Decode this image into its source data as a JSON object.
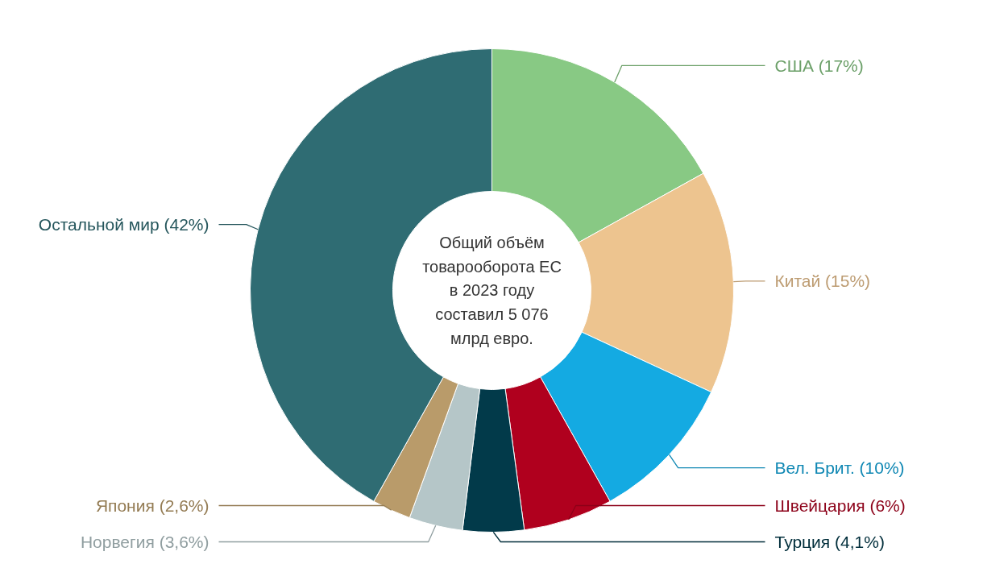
{
  "chart_data": {
    "type": "donut",
    "categories": [
      "США",
      "Китай",
      "Вел. Брит.",
      "Швейцария",
      "Турция",
      "Норвегия",
      "Япония",
      "Остальной мир"
    ],
    "values": [
      17,
      15,
      10,
      6,
      4.1,
      3.6,
      2.6,
      42
    ],
    "value_labels": [
      "(17%)",
      "(15%)",
      "(10%)",
      "(6%)",
      "(4,1%)",
      "(3,6%)",
      "(2,6%)",
      "(42%)"
    ],
    "colors": [
      "#88c984",
      "#edc48f",
      "#14aae2",
      "#b0001e",
      "#023a4a",
      "#b5c6c8",
      "#b99b6a",
      "#2f6c73"
    ],
    "annotations": [
      "Общий объём\nтоварооборота ЕС\nв 2023 году\nсоставил 5 076\nмлрд евро."
    ]
  }
}
